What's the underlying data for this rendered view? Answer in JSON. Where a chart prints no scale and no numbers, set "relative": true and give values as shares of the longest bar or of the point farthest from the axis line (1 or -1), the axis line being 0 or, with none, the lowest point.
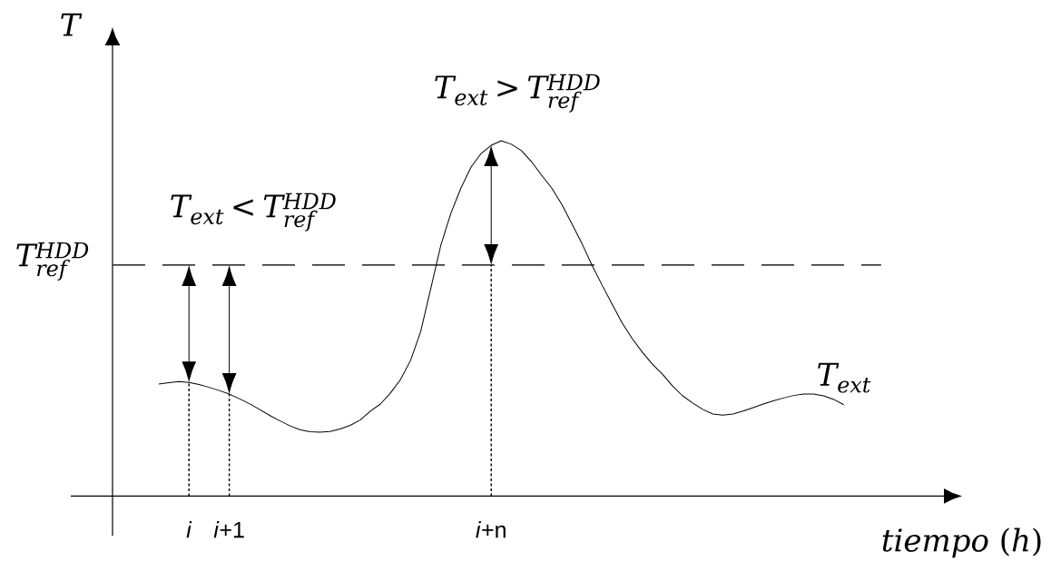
{
  "chart_data": {
    "type": "line",
    "relative": true,
    "xlabel": "*tiempo* (*h*)",
    "ylabel": "T",
    "categories": [
      null,
      null,
      null,
      "*i*",
      null,
      null,
      null,
      "*i*+1",
      null,
      null,
      null,
      null,
      null,
      null,
      null,
      null,
      null,
      null,
      null,
      null,
      null,
      null,
      null,
      null,
      null,
      null,
      null,
      null,
      null,
      null,
      null,
      null,
      null,
      "*i*+n",
      null,
      null,
      null,
      null,
      null,
      null,
      null,
      null,
      null,
      null,
      null,
      null,
      null,
      null,
      null,
      null,
      null,
      null,
      null,
      null,
      null,
      null,
      null,
      null,
      null,
      null,
      null,
      null,
      null,
      null,
      null,
      null,
      null,
      null,
      null
    ],
    "series": [
      {
        "name": "T_{ext}",
        "color": "#000000",
        "values": [
          0.315,
          0.319,
          0.322,
          0.32,
          0.314,
          0.306,
          0.297,
          0.287,
          0.274,
          0.26,
          0.244,
          0.227,
          0.212,
          0.198,
          0.187,
          0.181,
          0.18,
          0.182,
          0.189,
          0.199,
          0.214,
          0.239,
          0.259,
          0.29,
          0.328,
          0.382,
          0.463,
          0.584,
          0.706,
          0.796,
          0.867,
          0.926,
          0.964,
          0.987,
          1,
          0.99,
          0.972,
          0.941,
          0.903,
          0.867,
          0.821,
          0.767,
          0.711,
          0.65,
          0.594,
          0.54,
          0.487,
          0.443,
          0.405,
          0.371,
          0.343,
          0.31,
          0.282,
          0.262,
          0.244,
          0.231,
          0.228,
          0.231,
          0.239,
          0.249,
          0.259,
          0.268,
          0.276,
          0.283,
          0.287,
          0.287,
          0.282,
          0.272,
          0.257
        ]
      },
      {
        "type": "line",
        "color": "#000000",
        "line_style": "dotted",
        "x": [
          "*i*",
          "*i*"
        ],
        "values": [
          0,
          0.32
        ]
      },
      {
        "type": "line",
        "color": "#000000",
        "line_style": "dotted",
        "x": [
          "*i*+1",
          "*i*+1"
        ],
        "values": [
          0,
          0.287
        ]
      },
      {
        "type": "line",
        "color": "#000000",
        "line_style": "dotted",
        "x": [
          "*i*+n",
          "*i*+n"
        ],
        "values": [
          0,
          0.65
        ]
      }
    ],
    "ref_lines": [
      {
        "axis": "y",
        "value": 0.65,
        "label": "T_{ref}^{HDD}",
        "color": "#404040",
        "line_style": "dashed"
      }
    ],
    "annotations": [
      "T_{ext} < T_{ref}^{HDD}",
      "T_{ext} > T_{ref}^{HDD}"
    ]
  }
}
